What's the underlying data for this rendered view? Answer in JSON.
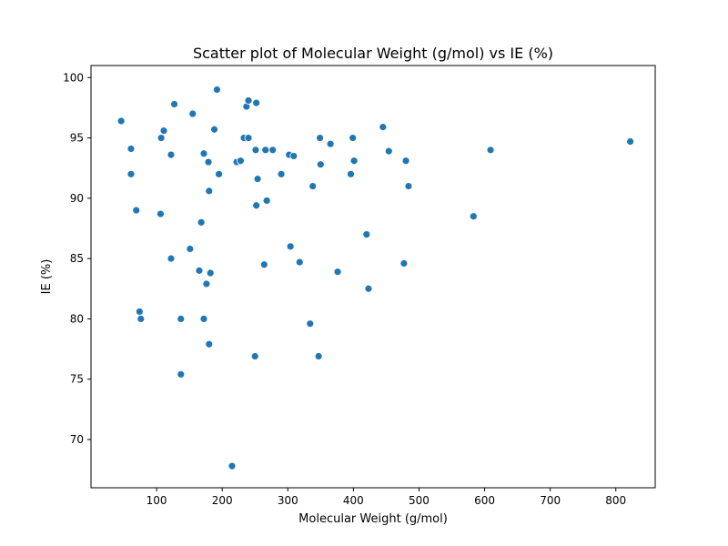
{
  "chart_data": {
    "type": "scatter",
    "title": "Scatter plot of Molecular Weight (g/mol) vs IE (%)",
    "xlabel": "Molecular Weight (g/mol)",
    "ylabel": "IE (%)",
    "xlim": [
      0,
      860
    ],
    "ylim": [
      66,
      101
    ],
    "xticks": [
      100,
      200,
      300,
      400,
      500,
      600,
      700,
      800
    ],
    "yticks": [
      70,
      75,
      80,
      85,
      90,
      95,
      100
    ],
    "grid": false,
    "legend": "none",
    "point_color": "#1f77b4",
    "points": [
      {
        "x": 46,
        "y": 96.4
      },
      {
        "x": 61,
        "y": 94.1
      },
      {
        "x": 61,
        "y": 92.0
      },
      {
        "x": 69,
        "y": 89.0
      },
      {
        "x": 74,
        "y": 80.6
      },
      {
        "x": 76,
        "y": 80.0
      },
      {
        "x": 106,
        "y": 88.7
      },
      {
        "x": 107,
        "y": 95.0
      },
      {
        "x": 111,
        "y": 95.6
      },
      {
        "x": 122,
        "y": 93.6
      },
      {
        "x": 122,
        "y": 85.0
      },
      {
        "x": 127,
        "y": 97.8
      },
      {
        "x": 137,
        "y": 80.0
      },
      {
        "x": 137,
        "y": 75.4
      },
      {
        "x": 151,
        "y": 85.8
      },
      {
        "x": 155,
        "y": 97.0
      },
      {
        "x": 165,
        "y": 84.0
      },
      {
        "x": 168,
        "y": 88.0
      },
      {
        "x": 172,
        "y": 93.7
      },
      {
        "x": 172,
        "y": 80.0
      },
      {
        "x": 176,
        "y": 82.9
      },
      {
        "x": 179,
        "y": 93.0
      },
      {
        "x": 180,
        "y": 90.6
      },
      {
        "x": 180,
        "y": 77.9
      },
      {
        "x": 182,
        "y": 83.8
      },
      {
        "x": 188,
        "y": 95.7
      },
      {
        "x": 192,
        "y": 99.0
      },
      {
        "x": 195,
        "y": 92.0
      },
      {
        "x": 215,
        "y": 67.8
      },
      {
        "x": 222,
        "y": 93.0
      },
      {
        "x": 228,
        "y": 93.1
      },
      {
        "x": 233,
        "y": 95.0
      },
      {
        "x": 237,
        "y": 97.6
      },
      {
        "x": 240,
        "y": 98.1
      },
      {
        "x": 240,
        "y": 95.0
      },
      {
        "x": 250,
        "y": 76.9
      },
      {
        "x": 251,
        "y": 94.0
      },
      {
        "x": 252,
        "y": 97.9
      },
      {
        "x": 252,
        "y": 89.4
      },
      {
        "x": 254,
        "y": 91.6
      },
      {
        "x": 264,
        "y": 84.5
      },
      {
        "x": 266,
        "y": 94.0
      },
      {
        "x": 268,
        "y": 89.8
      },
      {
        "x": 277,
        "y": 94.0
      },
      {
        "x": 290,
        "y": 92.0
      },
      {
        "x": 302,
        "y": 93.6
      },
      {
        "x": 304,
        "y": 86.0
      },
      {
        "x": 309,
        "y": 93.5
      },
      {
        "x": 318,
        "y": 84.7
      },
      {
        "x": 334,
        "y": 79.6
      },
      {
        "x": 338,
        "y": 91.0
      },
      {
        "x": 347,
        "y": 76.9
      },
      {
        "x": 349,
        "y": 95.0
      },
      {
        "x": 350,
        "y": 92.8
      },
      {
        "x": 365,
        "y": 94.5
      },
      {
        "x": 376,
        "y": 83.9
      },
      {
        "x": 396,
        "y": 92.0
      },
      {
        "x": 399,
        "y": 95.0
      },
      {
        "x": 401,
        "y": 93.1
      },
      {
        "x": 420,
        "y": 87.0
      },
      {
        "x": 423,
        "y": 82.5
      },
      {
        "x": 445,
        "y": 95.9
      },
      {
        "x": 454,
        "y": 93.9
      },
      {
        "x": 477,
        "y": 84.6
      },
      {
        "x": 480,
        "y": 93.1
      },
      {
        "x": 484,
        "y": 91.0
      },
      {
        "x": 583,
        "y": 88.5
      },
      {
        "x": 609,
        "y": 94.0
      },
      {
        "x": 822,
        "y": 94.7
      }
    ]
  }
}
